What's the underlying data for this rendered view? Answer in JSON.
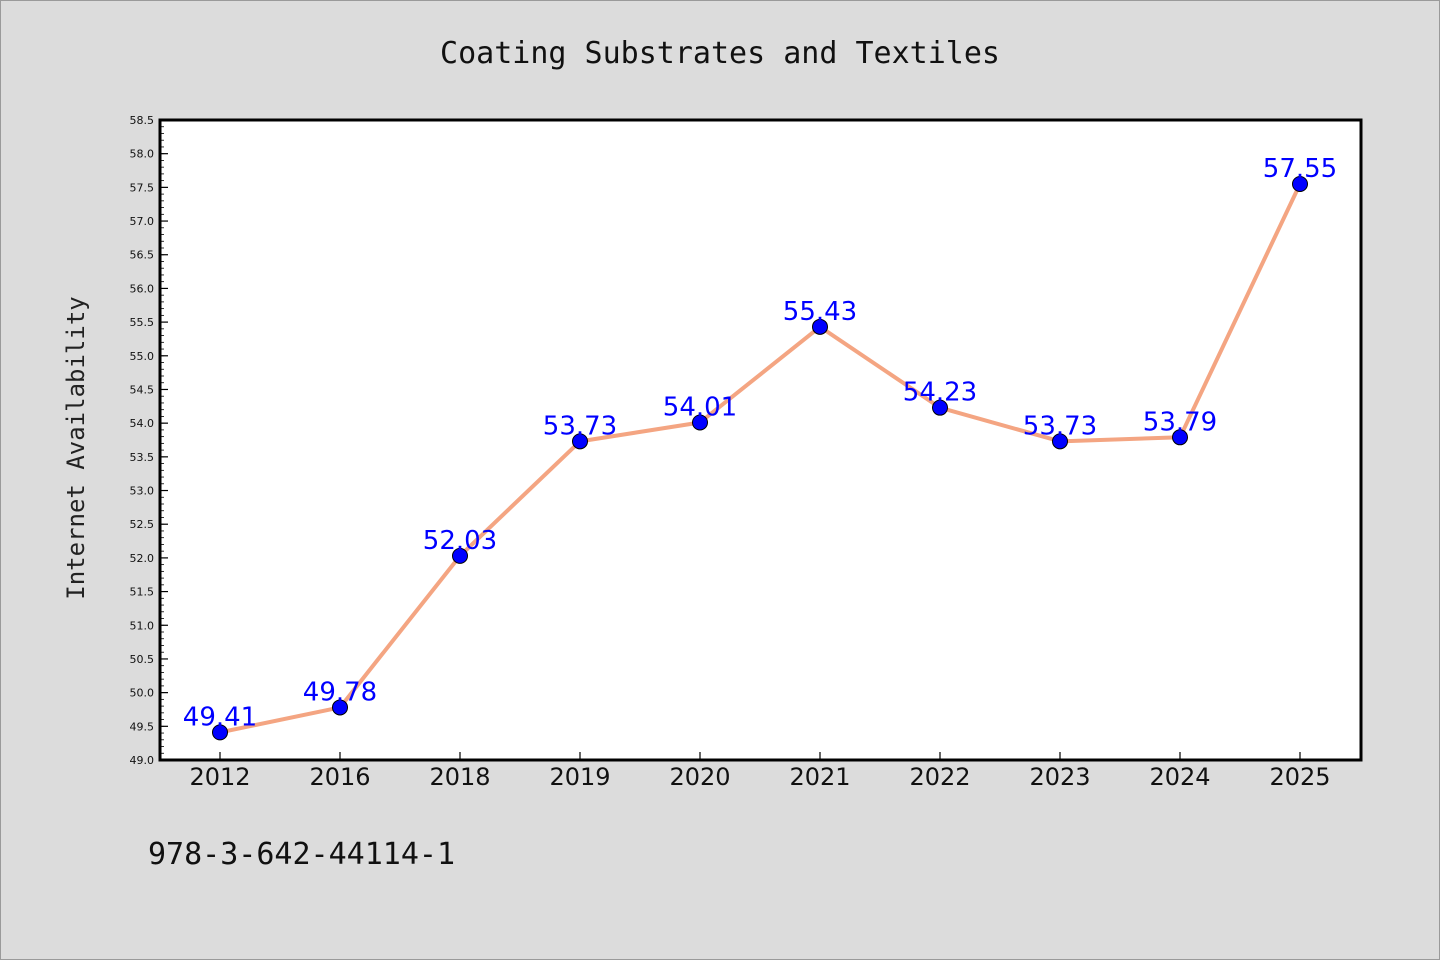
{
  "chart_data": {
    "type": "line",
    "title": "Coating Substrates and Textiles",
    "xlabel": "",
    "ylabel": "Internet Availability",
    "categories": [
      "2012",
      "2016",
      "2018",
      "2019",
      "2020",
      "2021",
      "2022",
      "2023",
      "2024",
      "2025"
    ],
    "series": [
      {
        "values": [
          49.41,
          49.78,
          52.03,
          53.73,
          54.01,
          55.43,
          54.23,
          53.73,
          53.79,
          57.55
        ],
        "data_labels": [
          "49.41",
          "49.78",
          "52.03",
          "53.73",
          "54.01",
          "55.43",
          "54.23",
          "53.73",
          "53.79",
          "57.55"
        ],
        "line_color": "#f4a582",
        "marker_color": "#0000ff",
        "label_color": "#0000ff"
      }
    ],
    "ylim": [
      49.0,
      58.5
    ],
    "yticks": [
      "49.0",
      "49.5",
      "50.0",
      "50.5",
      "51.0",
      "51.5",
      "52.0",
      "52.5",
      "53.0",
      "53.5",
      "54.0",
      "54.5",
      "55.0",
      "55.5",
      "56.0",
      "56.5",
      "57.0",
      "57.5",
      "58.0",
      "58.5"
    ],
    "grid": false,
    "legend": "none",
    "background_color": "#dcdcdc",
    "plot_background_color": "#ffffff"
  },
  "footnote": "978-3-642-44114-1"
}
